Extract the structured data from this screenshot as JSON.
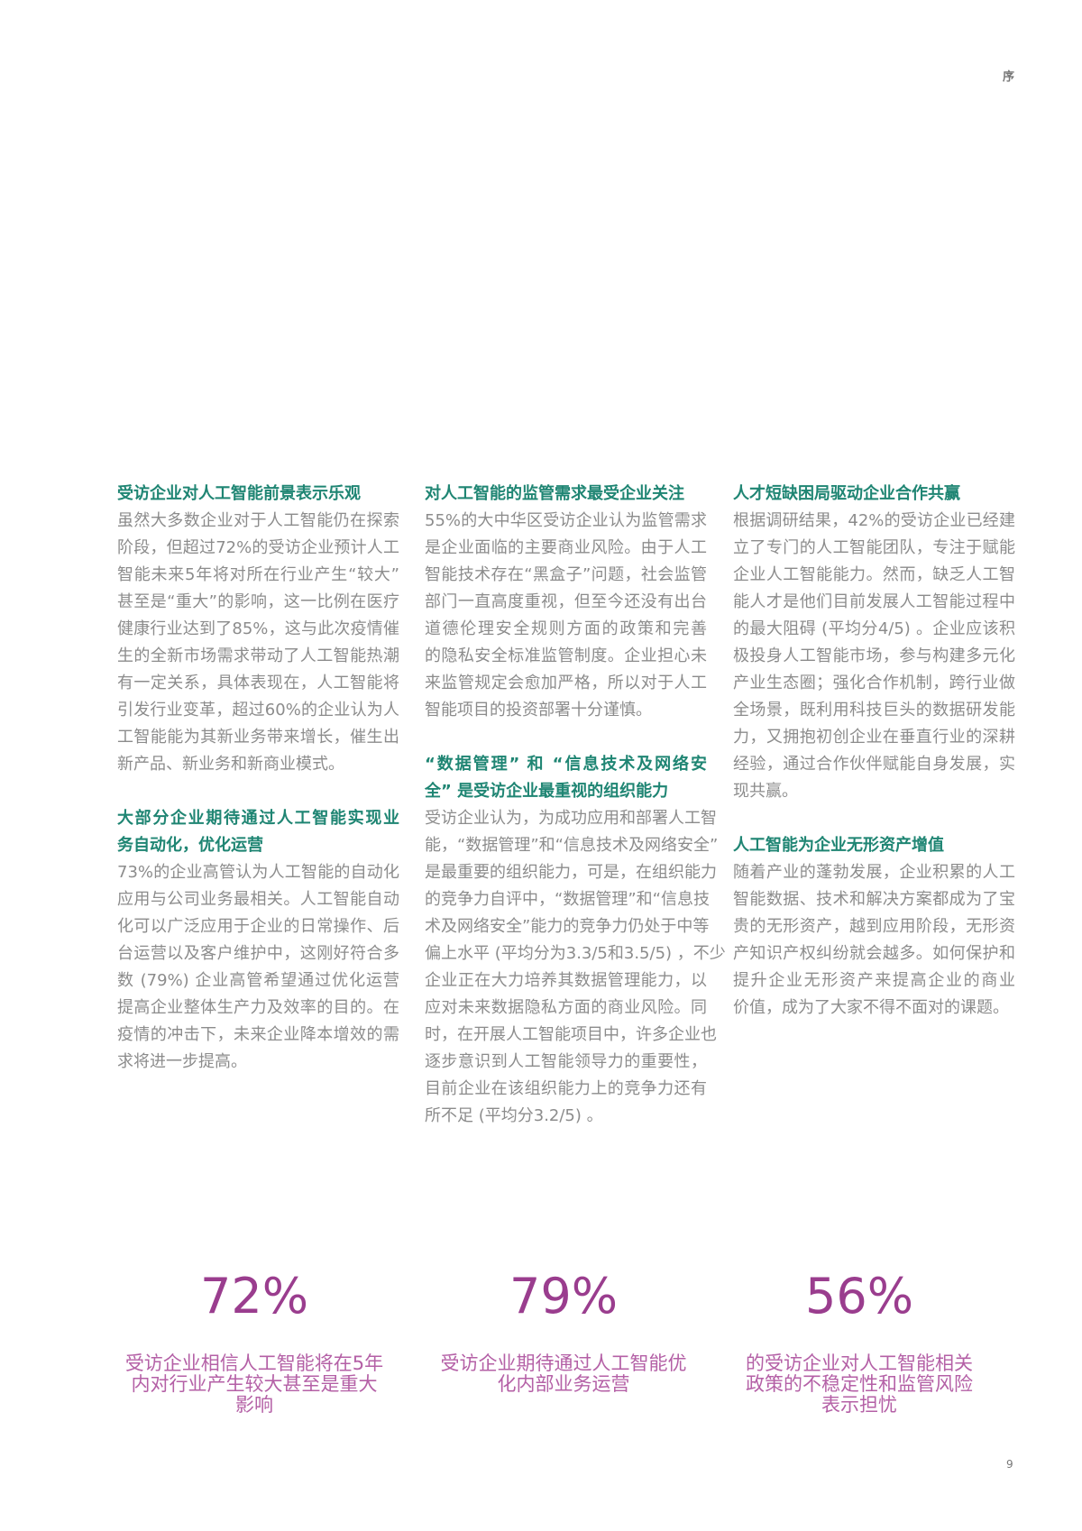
{
  "header": {
    "section": "序"
  },
  "footer": {
    "page_number": "9"
  },
  "colors": {
    "heading": "#1f8573",
    "body": "#8c8c8c",
    "stat_number": "#9a3d8e",
    "stat_caption": "#b460a6"
  },
  "columns": [
    {
      "blocks": [
        {
          "heading": [
            "受访企业对人工智能前景表示乐观"
          ],
          "body": [
            "虽然大多数企业对于人工智能仍在探索",
            "阶段，但超过72%的受访企业预计人工",
            "智能未来5年将对所在行业产生“较大”",
            "甚至是“重大”的影响，这一比例在医疗",
            "健康行业达到了85%，这与此次疫情催",
            "生的全新市场需求带动了人工智能热潮",
            "有一定关系，具体表现在，人工智能将",
            "引发行业变革，超过60%的企业认为人",
            "工智能能为其新业务带来增长，催生出",
            "新产品、新业务和新商业模式。"
          ]
        },
        {
          "heading": [
            "大部分企业期待通过人工智能实现业",
            "务自动化，优化运营"
          ],
          "body": [
            "73%的企业高管认为人工智能的自动化",
            "应用与公司业务最相关。人工智能自动",
            "化可以广泛应用于企业的日常操作、后",
            "台运营以及客户维护中，这刚好符合多",
            "数 (79%) 企业高管希望通过优化运营",
            "提高企业整体生产力及效率的目的。在",
            "疫情的冲击下，未来企业降本增效的需",
            "求将进一步提高。"
          ]
        }
      ]
    },
    {
      "blocks": [
        {
          "heading": [
            "对人工智能的监管需求最受企业关注"
          ],
          "body": [
            "55%的大中华区受访企业认为监管需求",
            "是企业面临的主要商业风险。由于人工",
            "智能技术存在“黑盒子”问题，社会监管",
            "部门一直高度重视，但至今还没有出台",
            "道德伦理安全规则方面的政策和完善",
            "的隐私安全标准监管制度。企业担心未",
            "来监管规定会愈加严格，所以对于人工",
            "智能项目的投资部署十分谨慎。"
          ]
        },
        {
          "heading": [
            " “数据管理” 和 “信息技术及网络安",
            "全” 是受访企业最重视的组织能力"
          ],
          "body": [
            "受访企业认为，为成功应用和部署人工智",
            "能，“数据管理”和“信息技术及网络安全”",
            "是最重要的组织能力，可是，在组织能力",
            "的竞争力自评中，“数据管理”和“信息技",
            "术及网络安全”能力的竞争力仍处于中等",
            "偏上水平 (平均分为3.3/5和3.5/5) ，不少",
            "企业正在大力培养其数据管理能力，以",
            "应对未来数据隐私方面的商业风险。同",
            "时，在开展人工智能项目中，许多企业也",
            "逐步意识到人工智能领导力的重要性，",
            "目前企业在该组织能力上的竞争力还有",
            "所不足 (平均分3.2/5) 。"
          ]
        }
      ]
    },
    {
      "blocks": [
        {
          "heading": [
            "人才短缺困局驱动企业合作共赢"
          ],
          "body": [
            "根据调研结果，42%的受访企业已经建",
            "立了专门的人工智能团队，专注于赋能",
            "企业人工智能能力。然而，缺乏人工智",
            "能人才是他们目前发展人工智能过程中",
            "的最大阻碍 (平均分4/5) 。企业应该积",
            "极投身人工智能市场，参与构建多元化",
            "产业生态圈；强化合作机制，跨行业做",
            "全场景，既利用科技巨头的数据研发能",
            "力，又拥抱初创企业在垂直行业的深耕",
            "经验，通过合作伙伴赋能自身发展，实",
            "现共赢。"
          ]
        },
        {
          "heading": [
            "人工智能为企业无形资产增值"
          ],
          "body": [
            "随着产业的蓬勃发展，企业积累的人工",
            "智能数据、技术和解决方案都成为了宝",
            "贵的无形资产，越到应用阶段，无形资",
            "产知识产权纠纷就会越多。如何保护和",
            "提升企业无形资产来提高企业的商业",
            "价值，成为了大家不得不面对的课题。"
          ]
        }
      ]
    }
  ],
  "stats": [
    {
      "value": "72%",
      "caption": [
        "受访企业相信人工智能将在5年",
        "内对行业产生较大甚至是重大",
        "影响"
      ]
    },
    {
      "value": "79%",
      "caption": [
        "受访企业期待通过人工智能优",
        "化内部业务运营"
      ]
    },
    {
      "value": "56%",
      "caption": [
        "的受访企业对人工智能相关",
        "政策的不稳定性和监管风险",
        "表示担忧"
      ]
    }
  ]
}
